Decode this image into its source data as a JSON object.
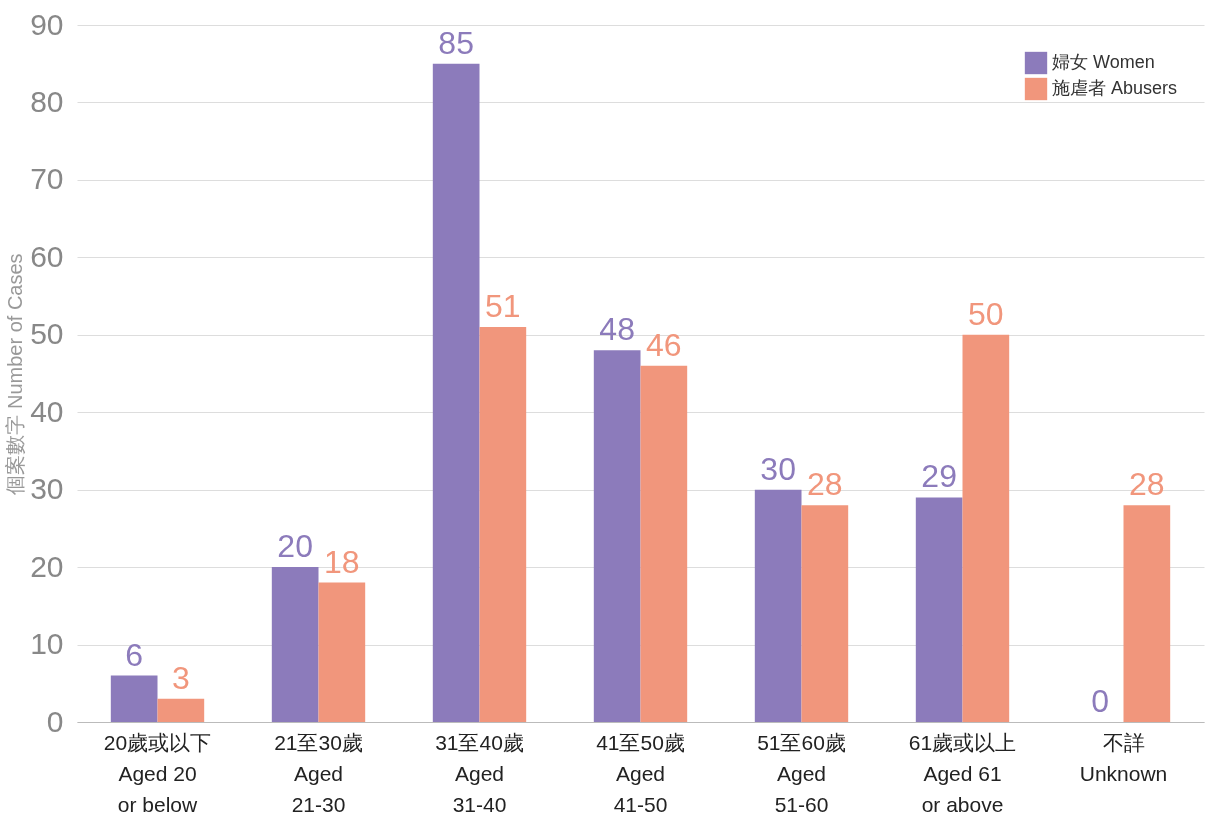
{
  "chart_data": {
    "type": "bar",
    "ylabel": "個案數字 Number of Cases",
    "categories": [
      "20歲或以下\nAged 20\nor below",
      "21至30歲\nAged\n21-30",
      "31至40歲\nAged\n31-40",
      "41至50歲\nAged\n41-50",
      "51至60歲\nAged\n51-60",
      "61歲或以上\nAged 61\nor above",
      "不詳\nUnknown"
    ],
    "series": [
      {
        "name": "婦女 Women",
        "color": "#8c7bbb",
        "values": [
          6,
          20,
          85,
          48,
          30,
          29,
          0
        ]
      },
      {
        "name": "施虐者 Abusers",
        "color": "#f1967c",
        "values": [
          3,
          18,
          51,
          46,
          28,
          50,
          28
        ]
      }
    ],
    "ylim": [
      0,
      90
    ],
    "yticks": [
      0,
      10,
      20,
      30,
      40,
      50,
      60,
      70,
      80,
      90
    ],
    "grid": "y",
    "legend": "top right",
    "data_labels": true
  }
}
